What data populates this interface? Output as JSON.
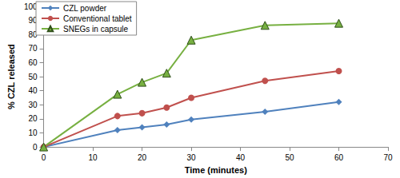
{
  "chart_data": {
    "type": "line",
    "x_label": "Time (minutes)",
    "y_label": "% CZL released",
    "x": [
      0,
      15,
      20,
      25,
      30,
      45,
      60
    ],
    "series": [
      {
        "name": "CZL powder",
        "color": "#4f81bd",
        "marker": "diamond",
        "values": [
          0,
          12,
          14,
          16,
          19.5,
          25,
          32
        ]
      },
      {
        "name": "Conventional tablet",
        "color": "#c0504d",
        "marker": "circle",
        "values": [
          0,
          22,
          24,
          28,
          35,
          47,
          54
        ]
      },
      {
        "name": "SNEGs in capsule",
        "color": "#77b041",
        "marker": "triangle",
        "values": [
          0,
          37.5,
          46,
          52.5,
          76,
          86.5,
          88
        ]
      }
    ],
    "xlim": [
      0,
      70
    ],
    "xticks": [
      0,
      10,
      20,
      30,
      40,
      50,
      60,
      70
    ],
    "ylim": [
      0,
      100
    ],
    "yticks": [
      0,
      10,
      20,
      30,
      40,
      50,
      60,
      70,
      80,
      90,
      100
    ],
    "grid": false,
    "legend": "top-left"
  }
}
